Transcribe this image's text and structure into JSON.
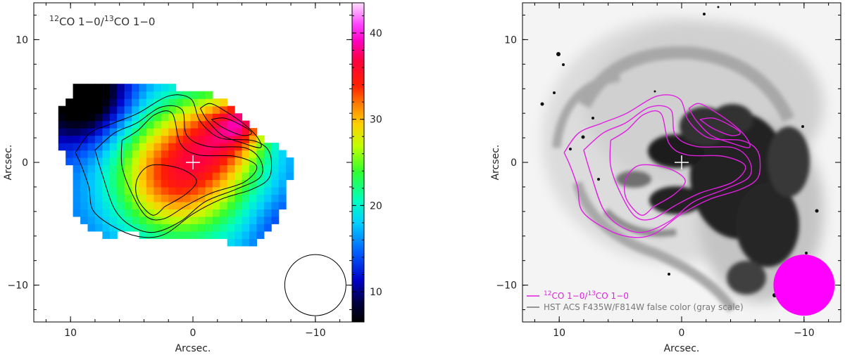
{
  "chart_data": [
    {
      "type": "heatmap",
      "title": "12CO 1-0/13CO 1-0",
      "title_parts": {
        "sup1": "12",
        "mid": "CO 1−0/",
        "sup2": "13",
        "end": "CO 1−0"
      },
      "xlabel": "Arcsec.",
      "ylabel": "Arcsec.",
      "xlim": [
        13,
        -13
      ],
      "ylim": [
        -13,
        13
      ],
      "x_ticks": [
        10,
        0,
        -10
      ],
      "y_ticks": [
        10,
        0,
        -10
      ],
      "x_tick_labels": [
        "10",
        "0",
        "−10"
      ],
      "y_tick_labels": [
        "10",
        "0",
        "−10"
      ],
      "colorbar": {
        "range": [
          6.5,
          43.5
        ],
        "ticks": [
          10,
          20,
          30,
          40
        ],
        "tick_labels": [
          "10",
          "20",
          "30",
          "40"
        ]
      },
      "center_marker": {
        "x": 0,
        "y": 0
      },
      "beam": {
        "x": -10,
        "y": -10,
        "diameter": 5
      },
      "contours": [
        [
          [
            9.6,
            0.8
          ],
          [
            8.4,
            2.4
          ],
          [
            6.5,
            3.2
          ],
          [
            4.5,
            4.0
          ],
          [
            2.0,
            5.4
          ],
          [
            0.2,
            5.2
          ],
          [
            -0.5,
            3.5
          ],
          [
            -1.5,
            2.4
          ],
          [
            -2.6,
            1.9
          ],
          [
            -4.8,
            1.8
          ],
          [
            -6.0,
            1.2
          ],
          [
            -6.4,
            0.2
          ],
          [
            -6.2,
            -1.3
          ],
          [
            -4.8,
            -2.2
          ],
          [
            -2.3,
            -3.0
          ],
          [
            0,
            -4.2
          ],
          [
            2.2,
            -5.8
          ],
          [
            4.0,
            -6.1
          ],
          [
            6.0,
            -5.5
          ],
          [
            8.1,
            -4.0
          ],
          [
            8.5,
            -2.0
          ],
          [
            9.1,
            -0.3
          ],
          [
            9.6,
            0.8
          ]
        ],
        [
          [
            8.0,
            1.0
          ],
          [
            6.4,
            2.4
          ],
          [
            4.6,
            3.2
          ],
          [
            2.6,
            4.5
          ],
          [
            0.9,
            4.3
          ],
          [
            0.5,
            2.2
          ],
          [
            -1.2,
            1.3
          ],
          [
            -4.2,
            1.2
          ],
          [
            -5.5,
            0.2
          ],
          [
            -5.5,
            -1.2
          ],
          [
            -3.5,
            -2.2
          ],
          [
            -1.0,
            -3.2
          ],
          [
            1.0,
            -4.8
          ],
          [
            3.2,
            -5.7
          ],
          [
            5.0,
            -5.2
          ],
          [
            6.4,
            -3.8
          ],
          [
            7.4,
            -1.0
          ],
          [
            8.0,
            1.0
          ]
        ],
        [
          [
            5.8,
            1.8
          ],
          [
            4.5,
            2.6
          ],
          [
            3.1,
            3.9
          ],
          [
            1.7,
            4.0
          ],
          [
            1.0,
            1.5
          ],
          [
            -0.5,
            0.6
          ],
          [
            -3.4,
            0.5
          ],
          [
            -5.2,
            -0.3
          ],
          [
            -4.2,
            -1.6
          ],
          [
            -1.5,
            -2.5
          ],
          [
            0.5,
            -3.5
          ],
          [
            2.4,
            -4.6
          ],
          [
            3.8,
            -4.4
          ],
          [
            5.0,
            -2.5
          ],
          [
            5.8,
            -0.3
          ],
          [
            5.8,
            1.8
          ]
        ],
        [
          [
            2.3,
            -3.6
          ],
          [
            3.3,
            -4.3
          ],
          [
            4.5,
            -3.0
          ],
          [
            4.6,
            -1.5
          ],
          [
            3.8,
            -0.4
          ],
          [
            2.6,
            -0.2
          ],
          [
            0.8,
            -0.6
          ],
          [
            -0.3,
            -1.5
          ],
          [
            0.6,
            -2.6
          ],
          [
            2.3,
            -3.6
          ]
        ],
        [
          [
            -0.6,
            4.4
          ],
          [
            -1.2,
            3.4
          ],
          [
            -2.4,
            2.2
          ],
          [
            -4.0,
            1.6
          ],
          [
            -5.5,
            1.2
          ],
          [
            -5.3,
            2.0
          ],
          [
            -4.2,
            3.1
          ],
          [
            -2.6,
            4.2
          ],
          [
            -1.4,
            4.8
          ],
          [
            -0.6,
            4.4
          ]
        ],
        [
          [
            -1.5,
            3.5
          ],
          [
            -2.5,
            2.8
          ],
          [
            -4.0,
            2.2
          ],
          [
            -4.8,
            2.4
          ],
          [
            -4.0,
            3.0
          ],
          [
            -2.6,
            3.6
          ],
          [
            -1.5,
            3.5
          ]
        ]
      ]
    },
    {
      "type": "other",
      "title": "",
      "xlabel": "Arcsec.",
      "ylabel": "Arcsec.",
      "xlim": [
        13,
        -13
      ],
      "ylim": [
        -13,
        13
      ],
      "x_ticks": [
        10,
        0,
        -10
      ],
      "y_ticks": [
        10,
        0,
        -10
      ],
      "x_tick_labels": [
        "10",
        "0",
        "−10"
      ],
      "y_tick_labels": [
        "10",
        "0",
        "−10"
      ],
      "center_marker": {
        "x": 0,
        "y": 0
      },
      "beam": {
        "x": -10,
        "y": -10,
        "diameter": 5,
        "color": "#ff00ff"
      },
      "legend": [
        {
          "text": "12CO 1-0/13CO 1-0",
          "color": "#e020e0",
          "parts": {
            "sup1": "12",
            "mid": "CO 1−0/",
            "sup2": "13",
            "end": "CO 1−0"
          }
        },
        {
          "text": "HST ACS F435W/F814W false color (gray scale)",
          "color": "#777777"
        }
      ],
      "contour_color": "#e020e0"
    }
  ]
}
